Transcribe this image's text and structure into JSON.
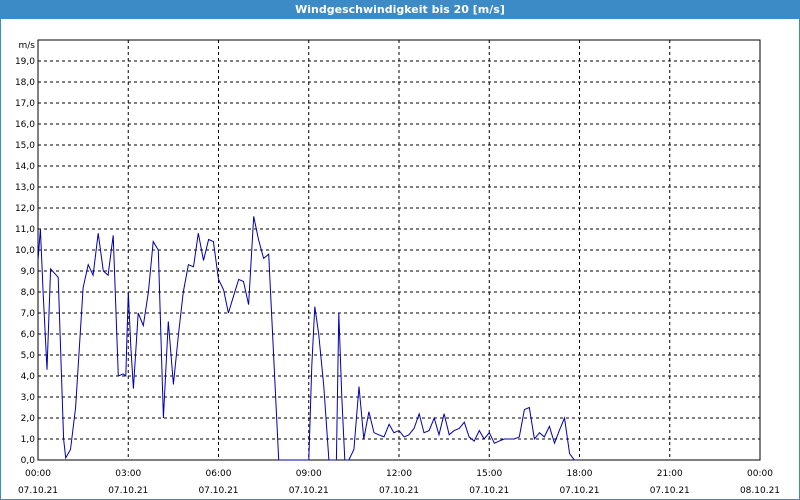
{
  "window": {
    "title": "Windgeschwindigkeit bis 20 [m/s]"
  },
  "colors": {
    "titlebar": "#3d8bc6",
    "series": "#0000b0",
    "grid": "#000000"
  },
  "chart_data": {
    "type": "line",
    "title": "Windgeschwindigkeit bis 20 [m/s]",
    "ylabel": "m/s",
    "xlabel": "",
    "ylim": [
      0,
      20
    ],
    "xlim_hours": [
      0,
      24
    ],
    "grid": true,
    "y_ticks": [
      "0,0",
      "1,0",
      "2,0",
      "3,0",
      "4,0",
      "5,0",
      "6,0",
      "7,0",
      "8,0",
      "9,0",
      "10,0",
      "11,0",
      "12,0",
      "13,0",
      "14,0",
      "15,0",
      "16,0",
      "17,0",
      "18,0",
      "19,0"
    ],
    "x_ticks": [
      {
        "time": "00:00",
        "date": "07.10.21"
      },
      {
        "time": "03:00",
        "date": "07.10.21"
      },
      {
        "time": "06:00",
        "date": "07.10.21"
      },
      {
        "time": "09:00",
        "date": "07.10.21"
      },
      {
        "time": "12:00",
        "date": "07.10.21"
      },
      {
        "time": "15:00",
        "date": "07.10.21"
      },
      {
        "time": "18:00",
        "date": "07.10.21"
      },
      {
        "time": "21:00",
        "date": "07.10.21"
      },
      {
        "time": "00:00",
        "date": "08.10.21"
      }
    ],
    "series": [
      {
        "name": "",
        "x": [
          0.0,
          0.08,
          0.17,
          0.3,
          0.42,
          0.67,
          0.85,
          0.92,
          1.08,
          1.25,
          1.5,
          1.67,
          1.83,
          2.0,
          2.17,
          2.33,
          2.5,
          2.67,
          2.83,
          2.92,
          3.0,
          3.08,
          3.17,
          3.33,
          3.5,
          3.67,
          3.83,
          4.0,
          4.17,
          4.33,
          4.5,
          4.67,
          4.83,
          5.0,
          5.17,
          5.33,
          5.5,
          5.67,
          5.83,
          6.0,
          6.17,
          6.33,
          6.5,
          6.67,
          6.83,
          7.0,
          7.17,
          7.33,
          7.5,
          7.67,
          8.0,
          8.17,
          8.33,
          8.5,
          8.67,
          8.83,
          9.0,
          9.1,
          9.2,
          9.33,
          9.5,
          9.67,
          9.83,
          9.92,
          10.0,
          10.1,
          10.2,
          10.33,
          10.5,
          10.67,
          10.83,
          11.0,
          11.17,
          11.33,
          11.5,
          11.67,
          11.83,
          12.0,
          12.17,
          12.33,
          12.5,
          12.67,
          12.83,
          13.0,
          13.17,
          13.33,
          13.5,
          13.67,
          13.83,
          14.0,
          14.17,
          14.33,
          14.5,
          14.67,
          14.83,
          15.0,
          15.17,
          15.33,
          15.5,
          15.67,
          15.83,
          16.0,
          16.17,
          16.33,
          16.5,
          16.67,
          16.83,
          17.0,
          17.17,
          17.33,
          17.5,
          17.67,
          17.83,
          17.92
        ],
        "y": [
          9.5,
          11.0,
          8.0,
          4.3,
          9.1,
          8.7,
          1.0,
          0.1,
          0.5,
          2.5,
          8.2,
          9.3,
          8.8,
          10.8,
          9.0,
          8.8,
          10.7,
          4.0,
          4.1,
          4.0,
          8.0,
          5.5,
          3.4,
          7.0,
          6.4,
          8.0,
          10.4,
          10.0,
          2.0,
          6.6,
          3.6,
          6.0,
          8.0,
          9.3,
          9.2,
          10.8,
          9.5,
          10.5,
          10.4,
          8.6,
          8.1,
          7.0,
          7.8,
          8.6,
          8.5,
          7.4,
          11.6,
          10.5,
          9.6,
          9.8,
          0.0,
          0.0,
          0.0,
          0.0,
          0.0,
          0.0,
          0.0,
          4.5,
          7.3,
          6.0,
          3.5,
          0.0,
          0.0,
          0.0,
          7.0,
          3.0,
          0.0,
          0.0,
          0.5,
          3.5,
          1.0,
          2.3,
          1.3,
          1.2,
          1.1,
          1.7,
          1.3,
          1.4,
          1.1,
          1.2,
          1.5,
          2.2,
          1.3,
          1.4,
          2.0,
          1.2,
          2.2,
          1.2,
          1.4,
          1.5,
          1.8,
          1.1,
          0.9,
          1.4,
          1.0,
          1.3,
          0.8,
          0.9,
          1.0,
          1.0,
          1.0,
          1.1,
          2.4,
          2.5,
          1.0,
          1.3,
          1.1,
          1.6,
          0.8,
          1.4,
          2.0,
          0.3,
          0.0,
          0.0
        ]
      }
    ]
  }
}
